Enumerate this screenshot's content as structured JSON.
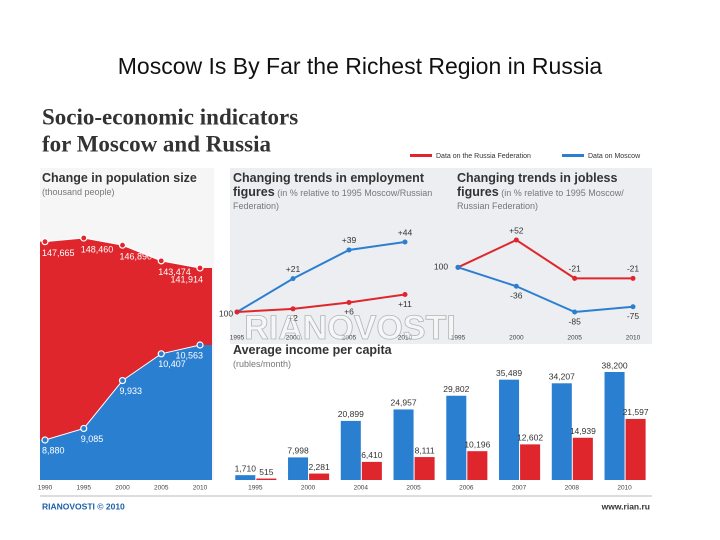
{
  "slide_title": "Moscow Is By Far the Richest Region in Russia",
  "header": {
    "title_lines": [
      "Socio-economic indicators",
      "for Moscow and Russia"
    ]
  },
  "legend": [
    {
      "label": "Data on the Russia Federation",
      "color": "#e0262d"
    },
    {
      "label": "Data on Moscow",
      "color": "#2b7fd1"
    }
  ],
  "watermark": "RIANOVOSTI",
  "footer": {
    "source": "RIANOVOSTI © 2010",
    "url": "www.rian.ru"
  },
  "chart_data": [
    {
      "type": "area",
      "title": "Change in population size",
      "subtitle": "(thousand people)",
      "categories": [
        "1990",
        "1995",
        "2000",
        "2005",
        "2010"
      ],
      "series": [
        {
          "color": "#e0262d",
          "values": [
            147665,
            148460,
            146890,
            143474,
            141914
          ],
          "value_labels": [
            "147,665",
            "148,460",
            "146,890",
            "143,474",
            "141,914"
          ]
        },
        {
          "color": "#2b7fd1",
          "values": [
            8880,
            9085,
            9933,
            10407,
            10563
          ],
          "value_labels": [
            "8,880",
            "9,085",
            "9,933",
            "10,407",
            "10,563"
          ]
        }
      ]
    },
    {
      "type": "line",
      "title": "Changing trends in employment figures",
      "subtitle": "(in % relative to 1995 Moscow/Russian Federation)",
      "start_label": "100",
      "categories": [
        "1995",
        "2000",
        "2005",
        "2010"
      ],
      "series": [
        {
          "color": "#2b7fd1",
          "values": [
            0,
            21,
            39,
            44
          ],
          "value_labels": [
            null,
            "+21",
            "+39",
            "+44"
          ]
        },
        {
          "color": "#e0262d",
          "values": [
            0,
            2,
            6,
            11
          ],
          "value_labels": [
            null,
            "+2",
            "+6",
            "+11"
          ]
        }
      ]
    },
    {
      "type": "line",
      "title": "Changing trends in jobless figures",
      "subtitle": "(in % relative to 1995 Moscow/ Russian Federation)",
      "start_label": "100",
      "categories": [
        "1995",
        "2000",
        "2005",
        "2010"
      ],
      "series": [
        {
          "color": "#e0262d",
          "values": [
            0,
            52,
            -21,
            -21
          ],
          "value_labels": [
            null,
            "+52",
            "-21",
            "-21"
          ]
        },
        {
          "color": "#2b7fd1",
          "values": [
            0,
            -36,
            -85,
            -75
          ],
          "value_labels": [
            null,
            "-36",
            "-85",
            "-75"
          ]
        }
      ]
    },
    {
      "type": "bar",
      "title": "Average income per capita",
      "subtitle": "(rubles/month)",
      "categories": [
        "1995",
        "2000",
        "2004",
        "2005",
        "2006",
        "2007",
        "2008",
        "2010"
      ],
      "series": [
        {
          "color": "#2b7fd1",
          "values": [
            1710,
            7998,
            20899,
            24957,
            29802,
            35489,
            34207,
            38200
          ],
          "value_labels": [
            "1,710",
            "7,998",
            "20,899",
            "24,957",
            "29,802",
            "35,489",
            "34,207",
            "38,200"
          ]
        },
        {
          "color": "#e0262d",
          "values": [
            515,
            2281,
            6410,
            8111,
            10196,
            12602,
            14939,
            21597
          ],
          "value_labels": [
            "515",
            "2,281",
            "6,410",
            "8,111",
            "10,196",
            "12,602",
            "14,939",
            "21,597"
          ]
        }
      ]
    }
  ]
}
